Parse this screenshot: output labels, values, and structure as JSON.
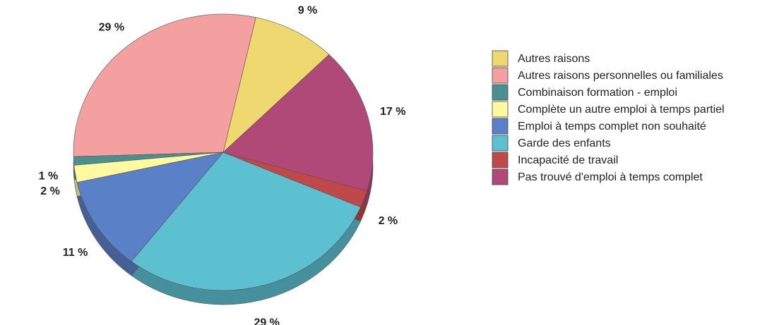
{
  "chart_data": {
    "type": "pie",
    "categories": [
      "Autres raisons",
      "Autres raisons personnelles ou familiales",
      "Combinaison formation - emploi",
      "Complète un autre emploi à temps partiel",
      "Emploi à temps complet non souhaité",
      "Garde des enfants",
      "Incapacité de travail",
      "Pas trouvé d'emploi à temps complet"
    ],
    "values": [
      9,
      29,
      1,
      2,
      11,
      29,
      2,
      17
    ],
    "value_labels": [
      "9 %",
      "29 %",
      "1 %",
      "2 %",
      "11 %",
      "29 %",
      "2 %",
      "17 %"
    ],
    "colors": [
      "#f0d870",
      "#f4a0a0",
      "#4a9090",
      "#fffaa0",
      "#5a80c8",
      "#5cc0d0",
      "#c04848",
      "#b04878"
    ],
    "legend": "right"
  }
}
